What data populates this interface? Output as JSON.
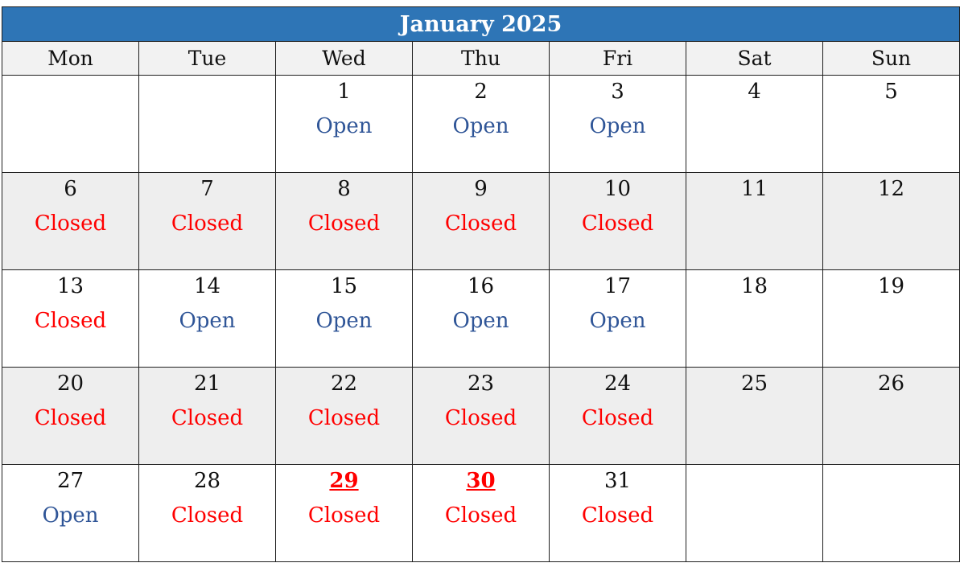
{
  "calendar": {
    "title": "January 2025",
    "colors": {
      "header_bg": "#2e75b6",
      "open": "#2f5597",
      "closed": "#ff0000",
      "shade": "#eeeeee"
    },
    "weekdays": [
      "Mon",
      "Tue",
      "Wed",
      "Thu",
      "Fri",
      "Sat",
      "Sun"
    ],
    "weeks": [
      [
        {
          "day": "",
          "status": ""
        },
        {
          "day": "",
          "status": ""
        },
        {
          "day": "1",
          "status": "Open"
        },
        {
          "day": "2",
          "status": "Open"
        },
        {
          "day": "3",
          "status": "Open"
        },
        {
          "day": "4",
          "status": ""
        },
        {
          "day": "5",
          "status": ""
        }
      ],
      [
        {
          "day": "6",
          "status": "Closed"
        },
        {
          "day": "7",
          "status": "Closed"
        },
        {
          "day": "8",
          "status": "Closed"
        },
        {
          "day": "9",
          "status": "Closed"
        },
        {
          "day": "10",
          "status": "Closed"
        },
        {
          "day": "11",
          "status": ""
        },
        {
          "day": "12",
          "status": ""
        }
      ],
      [
        {
          "day": "13",
          "status": "Closed"
        },
        {
          "day": "14",
          "status": "Open"
        },
        {
          "day": "15",
          "status": "Open"
        },
        {
          "day": "16",
          "status": "Open"
        },
        {
          "day": "17",
          "status": "Open"
        },
        {
          "day": "18",
          "status": ""
        },
        {
          "day": "19",
          "status": ""
        }
      ],
      [
        {
          "day": "20",
          "status": "Closed"
        },
        {
          "day": "21",
          "status": "Closed"
        },
        {
          "day": "22",
          "status": "Closed"
        },
        {
          "day": "23",
          "status": "Closed"
        },
        {
          "day": "24",
          "status": "Closed"
        },
        {
          "day": "25",
          "status": ""
        },
        {
          "day": "26",
          "status": ""
        }
      ],
      [
        {
          "day": "27",
          "status": "Open"
        },
        {
          "day": "28",
          "status": "Closed"
        },
        {
          "day": "29",
          "status": "Closed",
          "highlight": true
        },
        {
          "day": "30",
          "status": "Closed",
          "highlight": true
        },
        {
          "day": "31",
          "status": "Closed"
        },
        {
          "day": "",
          "status": ""
        },
        {
          "day": "",
          "status": ""
        }
      ]
    ]
  }
}
